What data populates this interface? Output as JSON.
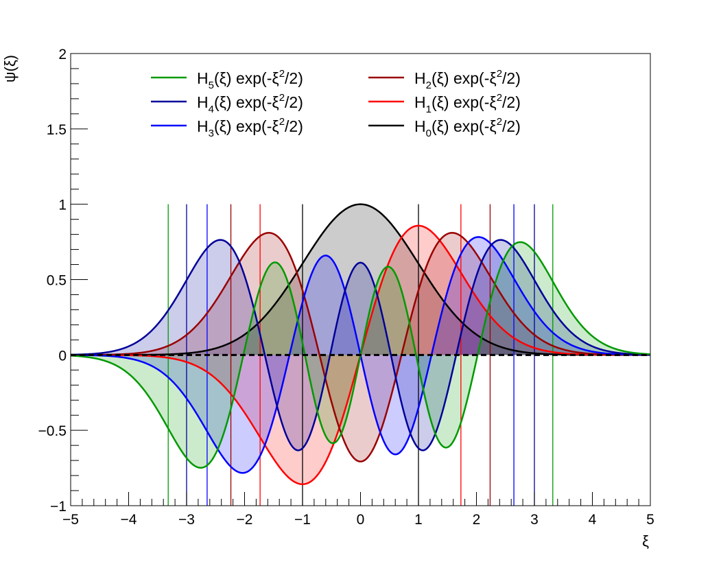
{
  "chart_data": {
    "type": "line",
    "xlabel": "ξ",
    "ylabel": "ψ(ξ)",
    "xlim": [
      -5,
      5
    ],
    "ylim": [
      -1,
      2
    ],
    "x_ticks": [
      "−5",
      "−4",
      "−3",
      "−2",
      "−1",
      "0",
      "1",
      "2",
      "3",
      "4",
      "5"
    ],
    "y_ticks": [
      "−1",
      "−0.5",
      "0",
      "0.5",
      "1",
      "1.5",
      "2"
    ],
    "x_tick_values": [
      -5,
      -4,
      -3,
      -2,
      -1,
      0,
      1,
      2,
      3,
      4,
      5
    ],
    "y_tick_values": [
      -1,
      -0.5,
      0,
      0.5,
      1,
      1.5,
      2
    ],
    "baseline": {
      "y": 0,
      "style": "dashed",
      "color": "#000000"
    },
    "legend_placement": "top",
    "series": [
      {
        "name": "H5",
        "label_main": "H",
        "label_sub": "5",
        "label_rest": "(ξ) exp(-ξ",
        "label_sup": "2",
        "label_end": "/2)",
        "n": 5,
        "color": "#009900",
        "fill": "rgba(0,153,0,0.2)",
        "turning_points": [
          -3.317,
          3.317
        ],
        "peak": 0.75
      },
      {
        "name": "H4",
        "label_main": "H",
        "label_sub": "4",
        "label_rest": "(ξ) exp(-ξ",
        "label_sup": "2",
        "label_end": "/2)",
        "n": 4,
        "color": "#000099",
        "fill": "rgba(0,0,153,0.2)",
        "turning_points": [
          -3.0,
          3.0
        ],
        "peak": 0.77
      },
      {
        "name": "H3",
        "label_main": "H",
        "label_sub": "3",
        "label_rest": "(ξ) exp(-ξ",
        "label_sup": "2",
        "label_end": "/2)",
        "n": 3,
        "color": "#0000ff",
        "fill": "rgba(0,0,255,0.2)",
        "turning_points": [
          -2.646,
          2.646
        ],
        "peak": 0.79
      },
      {
        "name": "H2",
        "label_main": "H",
        "label_sub": "2",
        "label_rest": "(ξ) exp(-ξ",
        "label_sup": "2",
        "label_end": "/2)",
        "n": 2,
        "color": "#990000",
        "fill": "rgba(153,0,0,0.2)",
        "turning_points": [
          -2.236,
          2.236
        ],
        "peak": 0.81
      },
      {
        "name": "H1",
        "label_main": "H",
        "label_sub": "1",
        "label_rest": "(ξ) exp(-ξ",
        "label_sup": "2",
        "label_end": "/2)",
        "n": 1,
        "color": "#ff0000",
        "fill": "rgba(255,0,0,0.2)",
        "turning_points": [
          -1.732,
          1.732
        ],
        "peak": 0.86
      },
      {
        "name": "H0",
        "label_main": "H",
        "label_sub": "0",
        "label_rest": "(ξ) exp(-ξ",
        "label_sup": "2",
        "label_end": "/2)",
        "n": 0,
        "color": "#000000",
        "fill": "rgba(0,0,0,0.2)",
        "turning_points": [
          -1.0,
          1.0
        ],
        "peak": 1.0
      }
    ]
  }
}
